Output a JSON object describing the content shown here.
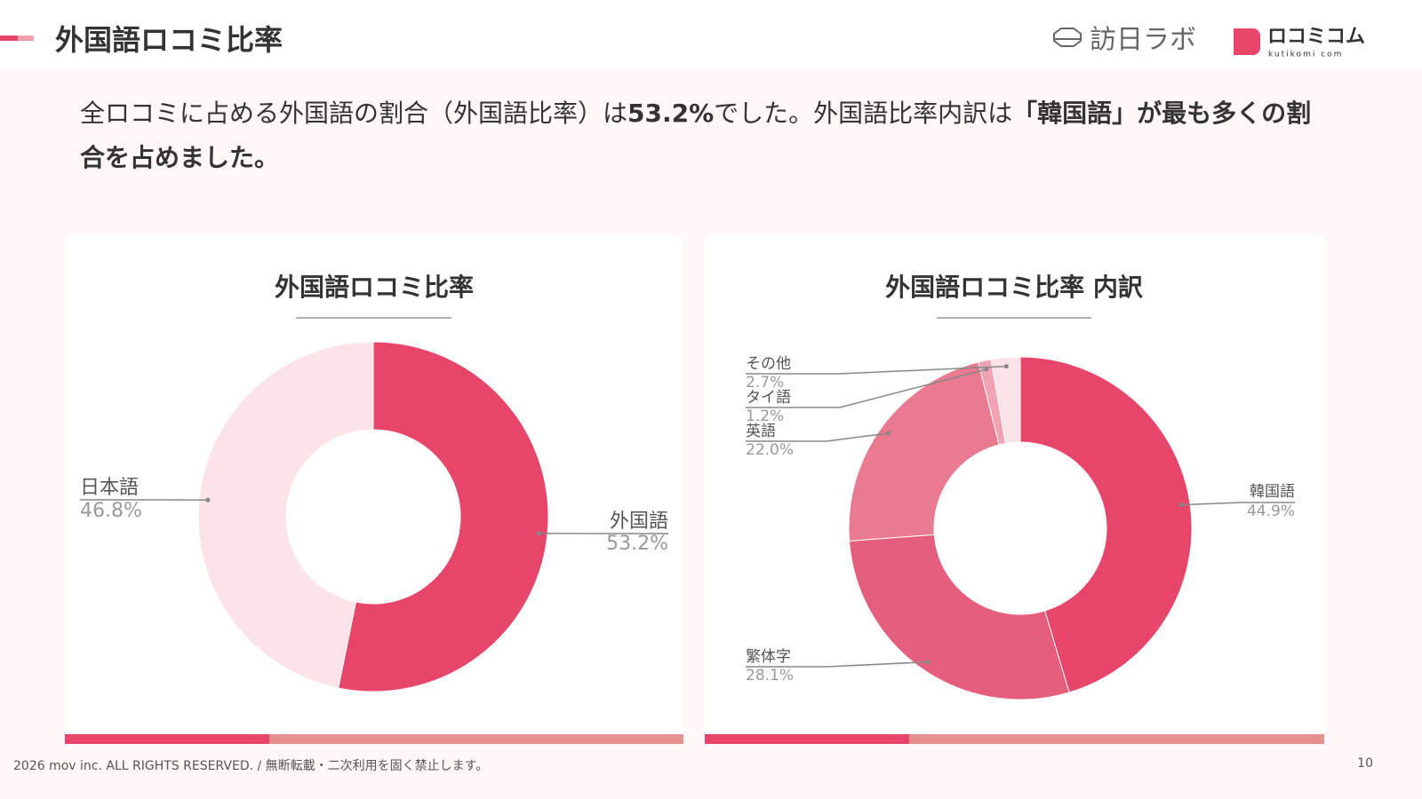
{
  "header": {
    "title": "外国語ロコミ比率",
    "logo_left": "訪日ラボ",
    "logo_right": "ロコミコム",
    "logo_right_sub": "kutikomi com"
  },
  "description": {
    "segments": [
      {
        "text": "全ロコミに占める外国語の割合（外国語比率）は",
        "bold": false
      },
      {
        "text": "53.2%",
        "bold": true
      },
      {
        "text": "でした。外国語比率内訳は",
        "bold": false
      },
      {
        "text": "「韓国語」が最も多くの割合を占めました。",
        "bold": true
      }
    ]
  },
  "chart_data": [
    {
      "type": "donut",
      "title": "外国語ロコミ比率",
      "categories": [
        "外国語",
        "日本語"
      ],
      "values": [
        53.2,
        46.8
      ],
      "value_labels": [
        "53.2%",
        "46.8%"
      ],
      "colors": [
        "#e8456b",
        "#fbe3e8"
      ]
    },
    {
      "type": "donut",
      "title": "外国語ロコミ比率 内訳",
      "categories": [
        "韓国語",
        "繁体字",
        "英語",
        "タイ語",
        "その他"
      ],
      "values": [
        44.9,
        28.1,
        22.0,
        1.2,
        2.7
      ],
      "value_labels": [
        "44.9%",
        "28.1%",
        "22.0%",
        "1.2%",
        "2.7%"
      ],
      "colors": [
        "#e8456b",
        "#e55e7c",
        "#e97a8f",
        "#f2a3b3",
        "#fce3e7"
      ]
    }
  ],
  "footer": {
    "copyright": "2026 mov inc. ALL RIGHTS RESERVED. / 無断転載・二次利用を固く禁止します。",
    "page": "10"
  }
}
